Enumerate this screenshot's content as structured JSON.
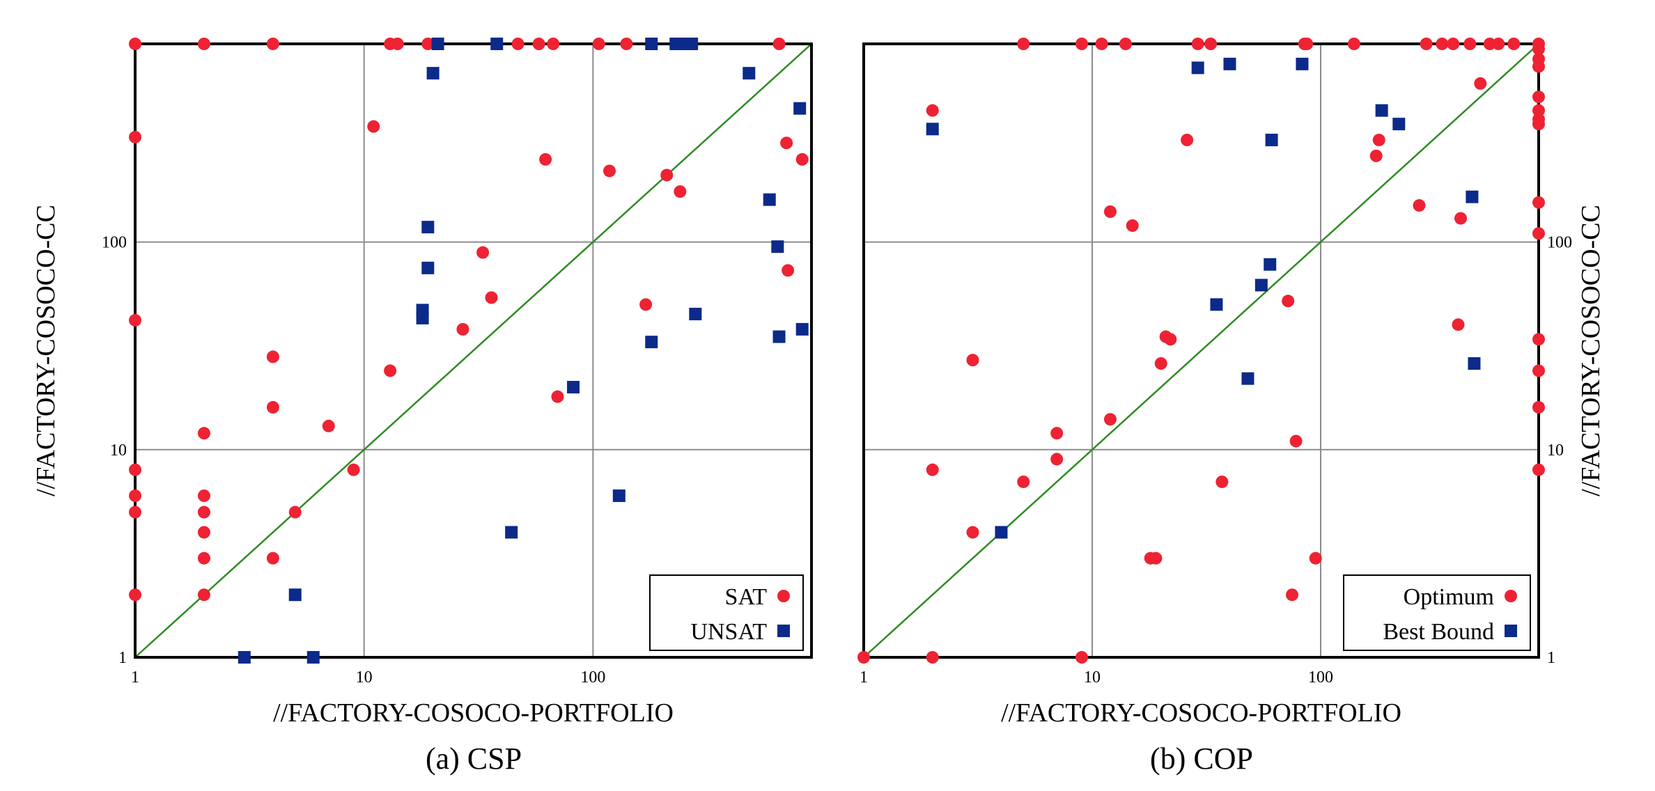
{
  "colors": {
    "series_red": "#ee2233",
    "series_blue": "#0b2a8a",
    "diagonal": "#2e8b22",
    "grid": "#8c8c8c"
  },
  "chart_data": [
    {
      "type": "scatter",
      "caption": "(a) CSP",
      "xlabel": "//FACTORY-COSOCO-PORTFOLIO",
      "ylabel": "//FACTORY-COSOCO-CC",
      "x_scale": "log",
      "y_scale": "log",
      "xlim": [
        1,
        900
      ],
      "ylim": [
        1,
        900
      ],
      "x_ticks": [
        "1",
        "10",
        "100"
      ],
      "y_ticks": [
        "1",
        "10",
        "100"
      ],
      "grid": true,
      "diagonal": true,
      "legend": "bottom-right",
      "series": [
        {
          "name": "SAT",
          "marker": "circle",
          "color": "#ee2233",
          "points": [
            [
              1,
              900
            ],
            [
              2,
              900
            ],
            [
              4,
              900
            ],
            [
              13,
              900
            ],
            [
              14,
              900
            ],
            [
              19,
              900
            ],
            [
              47,
              900
            ],
            [
              58,
              900
            ],
            [
              67,
              900
            ],
            [
              106,
              900
            ],
            [
              140,
              900
            ],
            [
              650,
              900
            ],
            [
              1,
              320
            ],
            [
              11,
              360
            ],
            [
              62,
              250
            ],
            [
              118,
              220
            ],
            [
              210,
              210
            ],
            [
              240,
              175
            ],
            [
              700,
              300
            ],
            [
              820,
              250
            ],
            [
              710,
              73
            ],
            [
              170,
              50
            ],
            [
              33,
              89
            ],
            [
              36,
              54
            ],
            [
              27,
              38
            ],
            [
              13,
              24
            ],
            [
              4,
              28
            ],
            [
              4,
              16
            ],
            [
              7,
              13
            ],
            [
              2,
              12
            ],
            [
              1,
              42
            ],
            [
              1,
              8
            ],
            [
              9,
              8
            ],
            [
              1,
              6
            ],
            [
              1,
              5
            ],
            [
              2,
              6
            ],
            [
              2,
              5
            ],
            [
              2,
              4
            ],
            [
              2,
              3
            ],
            [
              4,
              3
            ],
            [
              5,
              5
            ],
            [
              1,
              2
            ],
            [
              2,
              2
            ],
            [
              70,
              18
            ]
          ]
        },
        {
          "name": "UNSAT",
          "marker": "square",
          "color": "#0b2a8a",
          "points": [
            [
              21,
              900
            ],
            [
              38,
              900
            ],
            [
              180,
              900
            ],
            [
              230,
              900
            ],
            [
              250,
              900
            ],
            [
              270,
              900
            ],
            [
              20,
              650
            ],
            [
              480,
              650
            ],
            [
              800,
              440
            ],
            [
              590,
              160
            ],
            [
              640,
              95
            ],
            [
              19,
              118
            ],
            [
              19,
              75
            ],
            [
              18,
              47
            ],
            [
              18,
              43
            ],
            [
              650,
              35
            ],
            [
              820,
              38
            ],
            [
              280,
              45
            ],
            [
              180,
              33
            ],
            [
              82,
              20
            ],
            [
              44,
              4
            ],
            [
              130,
              6
            ],
            [
              5,
              2
            ],
            [
              3,
              1
            ],
            [
              6,
              1
            ]
          ]
        }
      ]
    },
    {
      "type": "scatter",
      "caption": "(b) COP",
      "xlabel": "//FACTORY-COSOCO-PORTFOLIO",
      "ylabel": "//FACTORY-COSOCO-CC",
      "x_scale": "log",
      "y_scale": "log",
      "xlim": [
        1,
        900
      ],
      "ylim": [
        1,
        900
      ],
      "x_ticks": [
        "1",
        "10",
        "100"
      ],
      "y_ticks": [
        "1",
        "10",
        "100"
      ],
      "grid": true,
      "diagonal": true,
      "legend": "bottom-right",
      "series": [
        {
          "name": "Optimum",
          "marker": "circle",
          "color": "#ee2233",
          "points": [
            [
              5,
              900
            ],
            [
              9,
              900
            ],
            [
              11,
              900
            ],
            [
              14,
              900
            ],
            [
              29,
              900
            ],
            [
              33,
              900
            ],
            [
              85,
              900
            ],
            [
              87,
              900
            ],
            [
              140,
              900
            ],
            [
              290,
              900
            ],
            [
              340,
              900
            ],
            [
              380,
              900
            ],
            [
              450,
              900
            ],
            [
              550,
              900
            ],
            [
              600,
              900
            ],
            [
              700,
              900
            ],
            [
              900,
              900
            ],
            [
              2,
              430
            ],
            [
              900,
              850
            ],
            [
              900,
              760
            ],
            [
              900,
              700
            ],
            [
              900,
              500
            ],
            [
              900,
              430
            ],
            [
              900,
              390
            ],
            [
              900,
              370
            ],
            [
              900,
              110
            ],
            [
              900,
              34
            ],
            [
              900,
              24
            ],
            [
              900,
              16
            ],
            [
              900,
              8
            ],
            [
              500,
              580
            ],
            [
              26,
              310
            ],
            [
              180,
              310
            ],
            [
              175,
              260
            ],
            [
              270,
              150
            ],
            [
              410,
              130
            ],
            [
              900,
              155
            ],
            [
              12,
              140
            ],
            [
              15,
              120
            ],
            [
              400,
              40
            ],
            [
              72,
              52
            ],
            [
              21,
              35
            ],
            [
              22,
              34
            ],
            [
              20,
              26
            ],
            [
              3,
              27
            ],
            [
              12,
              14
            ],
            [
              7,
              12
            ],
            [
              78,
              11
            ],
            [
              7,
              9
            ],
            [
              2,
              8
            ],
            [
              37,
              7
            ],
            [
              5,
              7
            ],
            [
              3,
              4
            ],
            [
              18,
              3
            ],
            [
              19,
              3
            ],
            [
              95,
              3
            ],
            [
              75,
              2
            ],
            [
              1,
              1
            ],
            [
              2,
              1
            ],
            [
              9,
              1
            ]
          ]
        },
        {
          "name": "Best Bound",
          "marker": "square",
          "color": "#0b2a8a",
          "points": [
            [
              2,
              350
            ],
            [
              29,
              690
            ],
            [
              40,
              720
            ],
            [
              83,
              720
            ],
            [
              61,
              310
            ],
            [
              185,
              430
            ],
            [
              220,
              370
            ],
            [
              460,
              165
            ],
            [
              60,
              78
            ],
            [
              55,
              62
            ],
            [
              35,
              50
            ],
            [
              48,
              22
            ],
            [
              470,
              26
            ],
            [
              4,
              4
            ]
          ]
        }
      ]
    }
  ]
}
